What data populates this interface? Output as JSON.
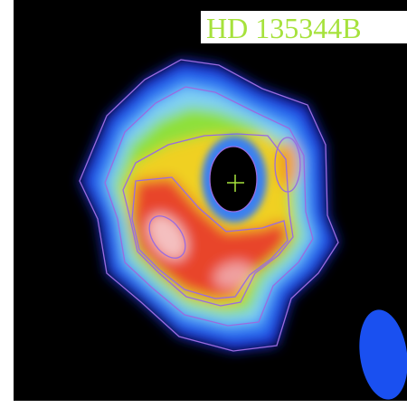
{
  "label": "HD 135344B"
}
